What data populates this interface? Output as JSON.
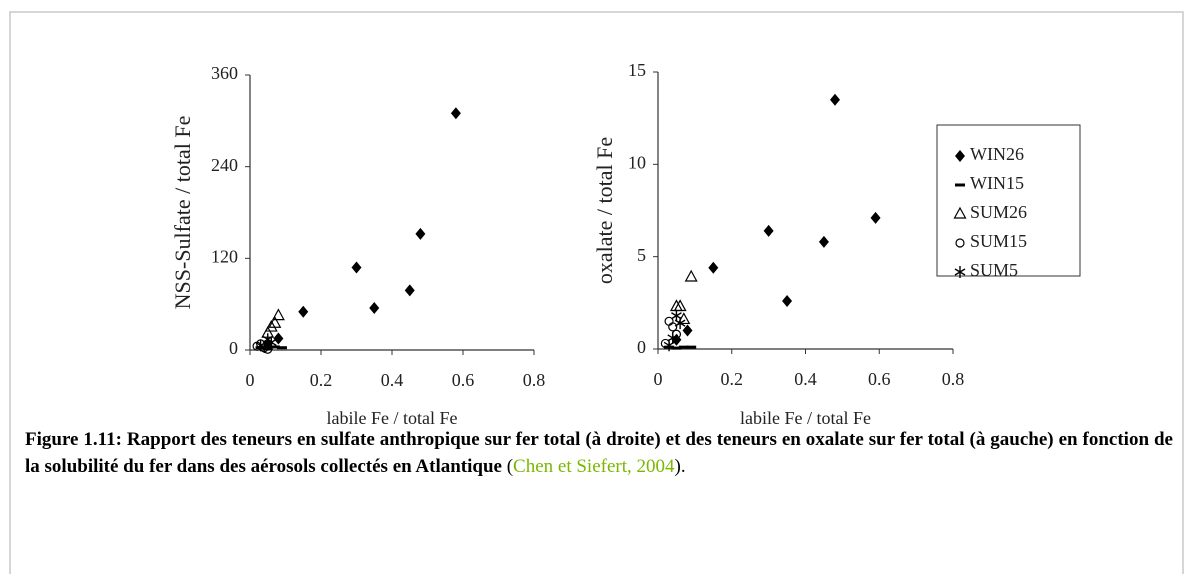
{
  "chart_data": [
    {
      "type": "scatter",
      "ylabel": "NSS-Sulfate / total Fe",
      "xlabel": "labile Fe / total Fe",
      "xlim": [
        0,
        0.8
      ],
      "ylim": [
        0,
        360
      ],
      "xticks": [
        0,
        0.2,
        0.4,
        0.6,
        0.8
      ],
      "yticks": [
        0,
        120,
        240,
        360
      ],
      "legend": false,
      "series": [
        {
          "name": "WIN26",
          "marker": "diamond",
          "color": "#000000",
          "x": [
            0.58,
            0.48,
            0.45,
            0.35,
            0.3,
            0.15,
            0.08,
            0.05
          ],
          "values": [
            310,
            152,
            78,
            55,
            108,
            50,
            15,
            8
          ]
        },
        {
          "name": "WIN15",
          "marker": "dash",
          "color": "#000000",
          "x": [
            0.03,
            0.05,
            0.07,
            0.09
          ],
          "values": [
            3,
            2,
            4,
            3
          ]
        },
        {
          "name": "SUM26",
          "marker": "triangle",
          "color": "#000000",
          "x": [
            0.08,
            0.06,
            0.05,
            0.07
          ],
          "values": [
            45,
            30,
            22,
            35
          ]
        },
        {
          "name": "SUM15",
          "marker": "circle",
          "color": "#000000",
          "x": [
            0.02,
            0.03,
            0.04,
            0.05
          ],
          "values": [
            5,
            8,
            3,
            1
          ]
        },
        {
          "name": "SUM5",
          "marker": "star",
          "color": "#000000",
          "x": [
            0.03,
            0.05,
            0.06,
            0.04
          ],
          "values": [
            6,
            14,
            10,
            4
          ]
        }
      ]
    },
    {
      "type": "scatter",
      "ylabel": "oxalate / total Fe",
      "xlabel": "labile Fe / total Fe",
      "xlim": [
        0,
        0.8
      ],
      "ylim": [
        0,
        15
      ],
      "xticks": [
        0,
        0.2,
        0.4,
        0.6,
        0.8
      ],
      "yticks": [
        0,
        5,
        10,
        15
      ],
      "legend": true,
      "series": [
        {
          "name": "WIN26",
          "marker": "diamond",
          "color": "#000000",
          "x": [
            0.48,
            0.59,
            0.3,
            0.45,
            0.35,
            0.15,
            0.08,
            0.05
          ],
          "values": [
            13.5,
            7.1,
            6.4,
            5.8,
            2.6,
            4.4,
            1.0,
            0.5
          ]
        },
        {
          "name": "WIN15",
          "marker": "dash",
          "color": "#000000",
          "x": [
            0.03,
            0.05,
            0.07,
            0.09
          ],
          "values": [
            0.1,
            0.05,
            0.1,
            0.1
          ]
        },
        {
          "name": "SUM26",
          "marker": "triangle",
          "color": "#000000",
          "x": [
            0.09,
            0.06,
            0.05,
            0.07
          ],
          "values": [
            3.9,
            2.3,
            2.3,
            1.6
          ]
        },
        {
          "name": "SUM15",
          "marker": "circle",
          "color": "#000000",
          "x": [
            0.03,
            0.04,
            0.02,
            0.05
          ],
          "values": [
            1.5,
            1.2,
            0.3,
            0.8
          ]
        },
        {
          "name": "SUM5",
          "marker": "star",
          "color": "#000000",
          "x": [
            0.05,
            0.06,
            0.04,
            0.03
          ],
          "values": [
            1.8,
            1.4,
            0.6,
            0.2
          ]
        }
      ]
    }
  ],
  "caption": [
    "Figure 1.11: Rapport des teneurs en sulfate anthropique sur fer total (à droite)  et des teneurs en oxalate sur fer total (à gauche) en fonction de la solubilité du fer dans des aérosols collectés en Atlantique",
    " (",
    "Chen et Siefert, 2004",
    ")."
  ]
}
